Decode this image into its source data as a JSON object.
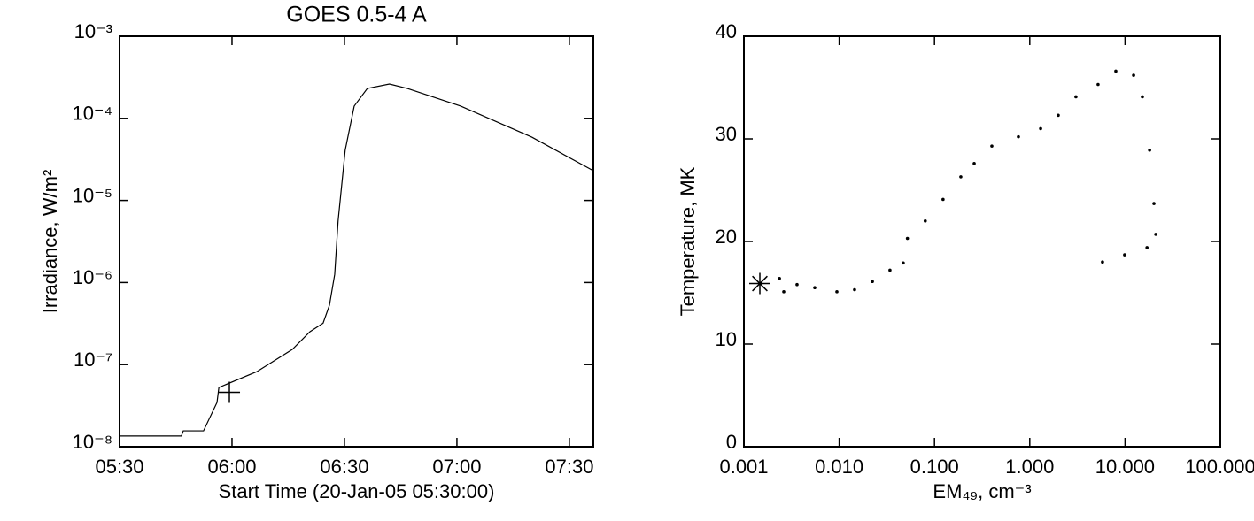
{
  "chart_data": [
    {
      "type": "line",
      "title": "GOES 0.5-4 A",
      "x_label": "Start Time (20-Jan-05 05:30:00)",
      "y_label": "Irradiance, W/m²",
      "y_log": true,
      "xlim": [
        0,
        126.4
      ],
      "ylim": [
        1e-08,
        0.001
      ],
      "xticks": [
        {
          "value": 0,
          "label": "05:30"
        },
        {
          "value": 30,
          "label": "06:00"
        },
        {
          "value": 60,
          "label": "06:30"
        },
        {
          "value": 90,
          "label": "07:00"
        },
        {
          "value": 120,
          "label": "07:30"
        }
      ],
      "yticks": [
        {
          "value": 1e-08,
          "label": "10⁻⁸"
        },
        {
          "value": 1e-07,
          "label": "10⁻⁷"
        },
        {
          "value": 1e-06,
          "label": "10⁻⁶"
        },
        {
          "value": 1e-05,
          "label": "10⁻⁵"
        },
        {
          "value": 0.0001,
          "label": "10⁻⁴"
        },
        {
          "value": 0.001,
          "label": "10⁻³"
        }
      ],
      "series": [
        {
          "color": "#000000",
          "x": [
            0,
            16.5,
            17,
            22.4,
            26,
            26.5,
            36.6,
            46.1,
            50.8,
            54.3,
            56,
            57.4,
            58.3,
            60.2,
            62.6,
            66.1,
            72,
            76.8,
            91,
            110,
            126.4
          ],
          "values": [
            1.35e-08,
            1.35e-08,
            1.56e-08,
            1.56e-08,
            3.46e-08,
            5.27e-08,
            8.2e-08,
            1.53e-07,
            2.52e-07,
            3.2e-07,
            5.3e-07,
            1.26e-06,
            5.6e-06,
            4.1e-05,
            0.000141,
            0.000231,
            0.000262,
            0.000231,
            0.000141,
            5.9e-05,
            2.3e-05
          ]
        }
      ],
      "marker": {
        "x": 29.3,
        "value": 4.6e-08,
        "symbol": "plus"
      }
    },
    {
      "type": "scatter",
      "x_label": "EM₄₉, cm⁻³",
      "y_label": "Temperature, MK",
      "x_log": true,
      "xlim": [
        0.001,
        100
      ],
      "ylim": [
        0,
        40
      ],
      "xticks": [
        0.001,
        {
          "value": 0.01,
          "label": "0.010"
        },
        {
          "value": 0.1,
          "label": "0.100"
        },
        {
          "value": 1,
          "label": "1.000"
        },
        {
          "value": 10,
          "label": "10.000"
        },
        {
          "value": 100,
          "label": "100.000"
        }
      ],
      "yticks": [
        0,
        10,
        20,
        30,
        40
      ],
      "series": [
        {
          "color": "#000000",
          "x": [
            0.00236,
            0.00262,
            0.00361,
            0.00554,
            0.00946,
            0.0145,
            0.0223,
            0.0341,
            0.047,
            0.052,
            0.08,
            0.123,
            0.189,
            0.261,
            0.4,
            0.76,
            1.3,
            1.99,
            3.05,
            5.21,
            8.0,
            12.3,
            15.2,
            18.1,
            20.1,
            21.0,
            17.0,
            9.9,
            5.8
          ],
          "values": [
            16.4,
            15.1,
            15.8,
            15.5,
            15.1,
            15.3,
            16.1,
            17.2,
            17.9,
            20.3,
            22.0,
            24.1,
            26.3,
            27.6,
            29.3,
            30.2,
            31.0,
            32.3,
            34.1,
            35.3,
            36.6,
            36.2,
            34.1,
            28.9,
            23.7,
            20.7,
            19.4,
            18.7,
            18.0
          ]
        }
      ],
      "marker": {
        "x": 0.00147,
        "value": 15.9,
        "symbol": "asterisk"
      }
    }
  ]
}
